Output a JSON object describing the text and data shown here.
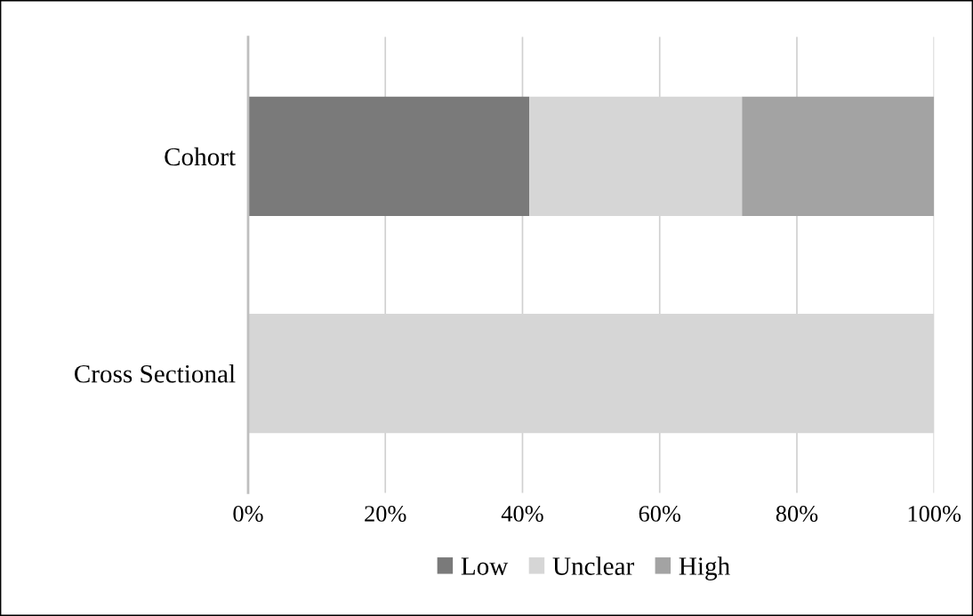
{
  "chart_data": {
    "type": "bar",
    "orientation": "horizontal",
    "stacked": true,
    "categories": [
      "Cohort",
      "Cross Sectional"
    ],
    "series": [
      {
        "name": "Low",
        "color": "#7a7a7a",
        "values": [
          41,
          0
        ]
      },
      {
        "name": "Unclear",
        "color": "#d6d6d6",
        "values": [
          31,
          100
        ]
      },
      {
        "name": "High",
        "color": "#a3a3a3",
        "values": [
          28,
          0
        ]
      }
    ],
    "xlim": [
      0,
      100
    ],
    "xticks": [
      {
        "value": 0,
        "label": "0%"
      },
      {
        "value": 20,
        "label": "20%"
      },
      {
        "value": 40,
        "label": "40%"
      },
      {
        "value": 60,
        "label": "60%"
      },
      {
        "value": 80,
        "label": "80%"
      },
      {
        "value": 100,
        "label": "100%"
      }
    ],
    "grid": "x",
    "legend": "bottom"
  }
}
